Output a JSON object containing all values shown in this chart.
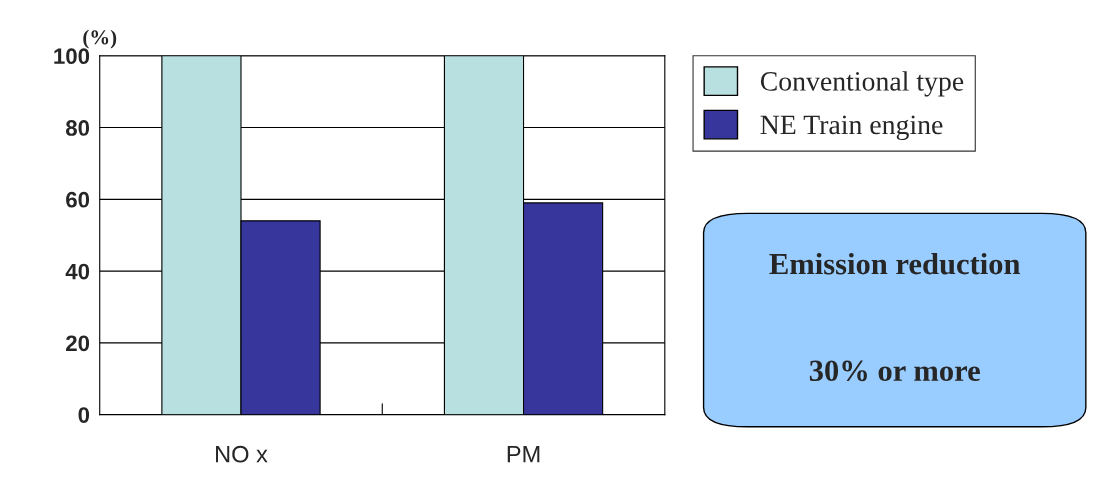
{
  "chart_data": {
    "type": "bar",
    "ylabel": "(%)",
    "categories": [
      "NO x",
      "PM"
    ],
    "series": [
      {
        "name": "Conventional type",
        "color": "#b9e0e0",
        "values": [
          100,
          100
        ]
      },
      {
        "name": "NE Train engine",
        "color": "#36369c",
        "values": [
          54,
          59
        ]
      }
    ],
    "ylim": [
      0,
      100
    ],
    "yticks": [
      0,
      20,
      40,
      60,
      80,
      100
    ],
    "grid": "y",
    "legend": "right",
    "annotations": [
      "Emission reduction",
      "30% or more"
    ]
  }
}
